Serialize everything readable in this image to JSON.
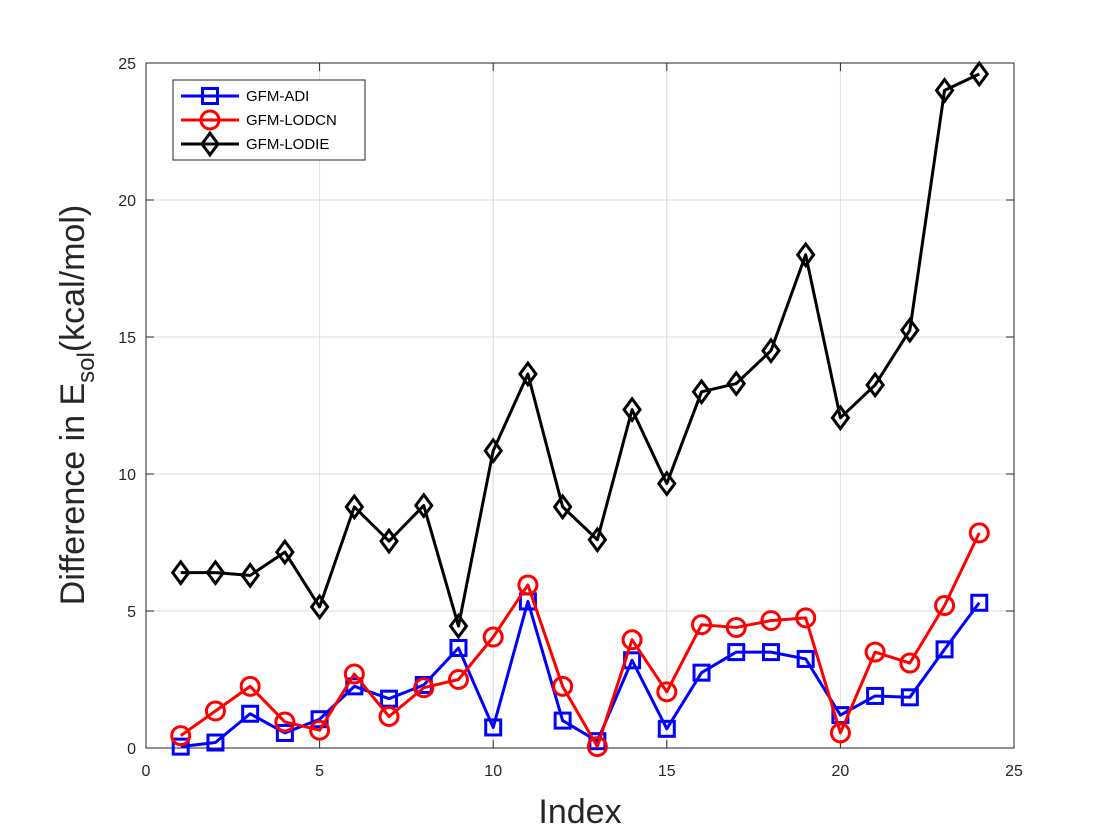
{
  "chart_data": {
    "type": "line",
    "xlabel": "Index",
    "ylabel_prefix": "Difference in E",
    "ylabel_subscript": "sol",
    "ylabel_suffix": "(kcal/mol)",
    "xlim": [
      0,
      25
    ],
    "ylim": [
      0,
      25
    ],
    "xticks": [
      0,
      5,
      10,
      15,
      20,
      25
    ],
    "yticks": [
      0,
      5,
      10,
      15,
      20,
      25
    ],
    "grid": true,
    "legend_position": "top-left",
    "x": [
      1,
      2,
      3,
      4,
      5,
      6,
      7,
      8,
      9,
      10,
      11,
      12,
      13,
      14,
      15,
      16,
      17,
      18,
      19,
      20,
      21,
      22,
      23,
      24
    ],
    "series": [
      {
        "name": "GFM-ADI",
        "color": "#0000ff",
        "marker": "square",
        "values": [
          0.05,
          0.2,
          1.25,
          0.55,
          1.05,
          2.25,
          1.8,
          2.3,
          3.65,
          0.75,
          5.35,
          1.0,
          0.25,
          3.2,
          0.7,
          2.75,
          3.5,
          3.5,
          3.25,
          1.2,
          1.9,
          1.85,
          3.6,
          5.3
        ]
      },
      {
        "name": "GFM-LODCN",
        "color": "#ff0000",
        "marker": "circle",
        "values": [
          0.45,
          1.35,
          2.25,
          0.95,
          0.65,
          2.7,
          1.15,
          2.2,
          2.5,
          4.05,
          5.95,
          2.25,
          0.05,
          3.95,
          2.05,
          4.5,
          4.4,
          4.65,
          4.75,
          0.55,
          3.5,
          3.1,
          5.2,
          7.85
        ]
      },
      {
        "name": "GFM-LODIE",
        "color": "#000000",
        "marker": "diamond",
        "values": [
          6.4,
          6.4,
          6.3,
          7.15,
          5.15,
          8.8,
          7.55,
          8.85,
          4.45,
          10.85,
          13.65,
          8.8,
          7.6,
          12.35,
          9.65,
          13.0,
          13.3,
          14.5,
          18.0,
          12.05,
          13.25,
          15.25,
          24.0,
          24.6
        ]
      }
    ]
  }
}
